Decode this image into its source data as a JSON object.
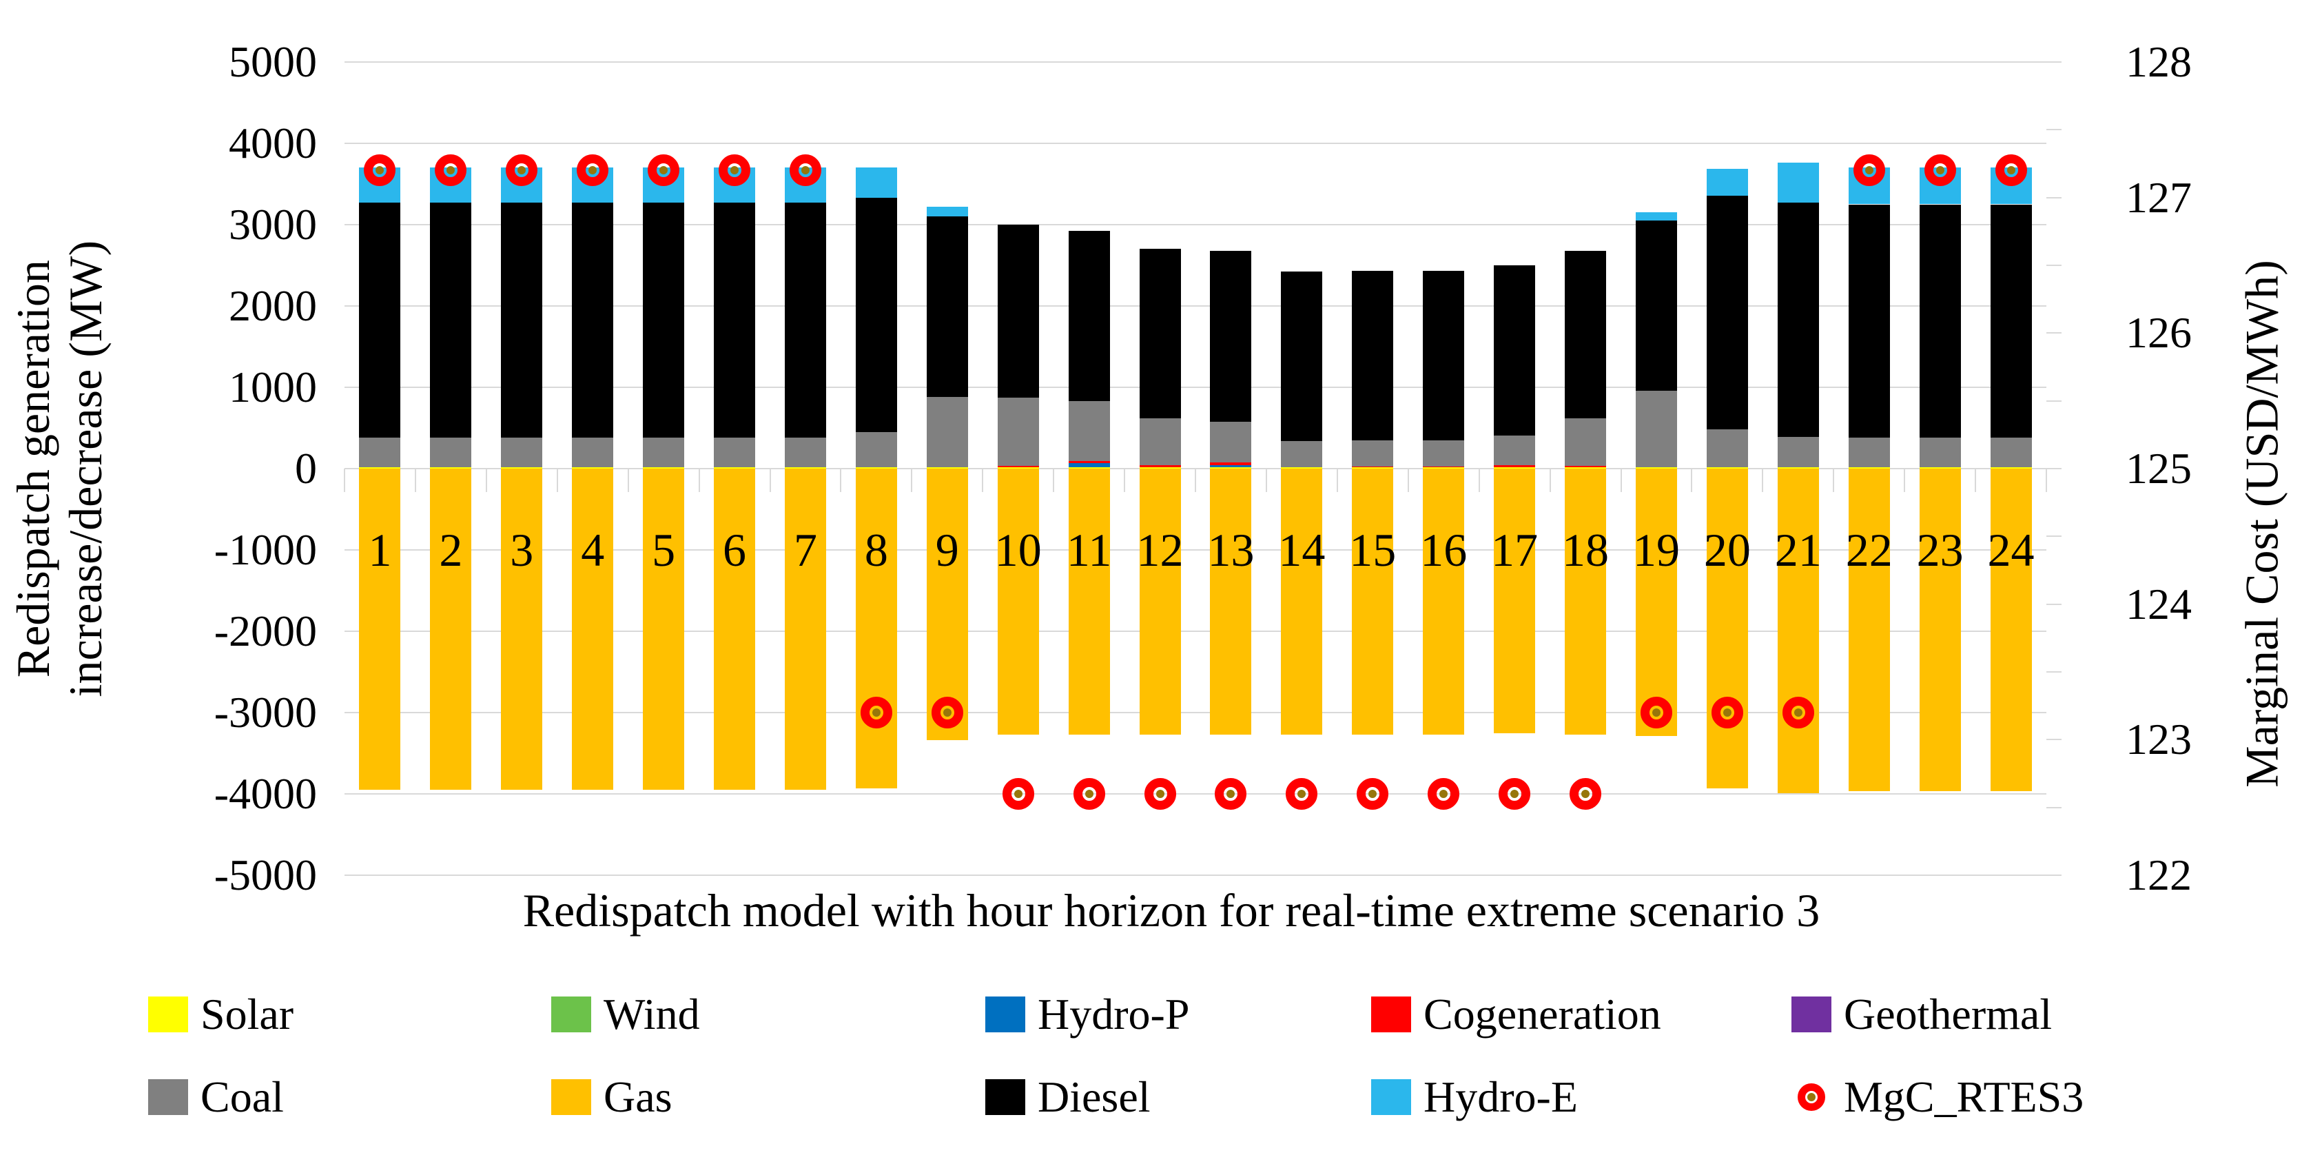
{
  "figure": {
    "x_axis_title": "Redispatch model with hour horizon for real-time extreme scenario 3",
    "left_axis": {
      "title_line1": "Redispatch generation",
      "title_line2": "increase/decrease (MW)",
      "tick_labels": [
        "5000",
        "4000",
        "3000",
        "2000",
        "1000",
        "0",
        "-1000",
        "-2000",
        "-3000",
        "-4000",
        "-5000"
      ]
    },
    "right_axis": {
      "title": "Marginal Cost (USD/MWh)",
      "tick_labels": [
        "128",
        "127",
        "126",
        "125",
        "124",
        "123",
        "122"
      ]
    },
    "legend": {
      "rows": [
        [
          {
            "label": "Solar",
            "type": "swatch",
            "color": "#FFFF00"
          },
          {
            "label": "Wind",
            "type": "swatch",
            "color": "#6CC24A"
          },
          {
            "label": "Hydro-P",
            "type": "swatch",
            "color": "#0070C0"
          },
          {
            "label": "Cogeneration",
            "type": "swatch",
            "color": "#FF0000"
          },
          {
            "label": "Geothermal",
            "type": "swatch",
            "color": "#7030A0"
          }
        ],
        [
          {
            "label": "Coal",
            "type": "swatch",
            "color": "#808080"
          },
          {
            "label": "Gas",
            "type": "swatch",
            "color": "#FFC000"
          },
          {
            "label": "Diesel",
            "type": "swatch",
            "color": "#000000"
          },
          {
            "label": "Hydro-E",
            "type": "swatch",
            "color": "#2BB7EC"
          },
          {
            "label": "MgC_RTES3",
            "type": "marker",
            "color": "#FF0000"
          }
        ]
      ]
    }
  },
  "chart_data": {
    "type": "bar",
    "subtype": "stacked-dual-axis",
    "title": "",
    "xlabel": "Redispatch model with hour horizon for real-time extreme scenario 3",
    "left_ylabel": "Redispatch generation increase/decrease (MW)",
    "right_ylabel": "Marginal Cost (USD/MWh)",
    "left_ylim": [
      -5000,
      5000
    ],
    "right_ylim": [
      122,
      128
    ],
    "grid": "horizontal",
    "legend_position": "bottom",
    "categories": [
      "1",
      "2",
      "3",
      "4",
      "5",
      "6",
      "7",
      "8",
      "9",
      "10",
      "11",
      "12",
      "13",
      "14",
      "15",
      "16",
      "17",
      "18",
      "19",
      "20",
      "21",
      "22",
      "23",
      "24"
    ],
    "series": [
      {
        "name": "Solar",
        "color": "#FFFF00",
        "values": [
          20,
          20,
          20,
          20,
          20,
          20,
          20,
          20,
          20,
          20,
          20,
          20,
          20,
          20,
          20,
          20,
          20,
          20,
          20,
          20,
          20,
          20,
          20,
          20
        ]
      },
      {
        "name": "Wind",
        "color": "#6CC24A",
        "values": [
          0,
          0,
          0,
          0,
          0,
          0,
          0,
          0,
          0,
          0,
          0,
          0,
          0,
          0,
          0,
          0,
          0,
          0,
          0,
          0,
          0,
          0,
          0,
          0
        ]
      },
      {
        "name": "Hydro-P",
        "color": "#0070C0",
        "values": [
          0,
          0,
          0,
          0,
          0,
          0,
          0,
          0,
          0,
          0,
          45,
          0,
          20,
          0,
          0,
          0,
          0,
          0,
          0,
          0,
          0,
          0,
          0,
          0
        ]
      },
      {
        "name": "Cogeneration",
        "color": "#FF0000",
        "values": [
          0,
          0,
          0,
          0,
          0,
          0,
          0,
          0,
          0,
          10,
          30,
          25,
          35,
          0,
          8,
          8,
          25,
          15,
          0,
          0,
          0,
          0,
          0,
          0
        ]
      },
      {
        "name": "Geothermal",
        "color": "#7030A0",
        "values": [
          0,
          0,
          0,
          0,
          0,
          0,
          0,
          0,
          0,
          0,
          0,
          0,
          0,
          0,
          0,
          0,
          0,
          0,
          0,
          0,
          0,
          0,
          0,
          0
        ]
      },
      {
        "name": "Coal",
        "color": "#808080",
        "values": [
          360,
          360,
          360,
          360,
          360,
          360,
          360,
          430,
          860,
          840,
          735,
          570,
          505,
          320,
          320,
          320,
          365,
          580,
          940,
          460,
          370,
          360,
          360,
          360
        ]
      },
      {
        "name": "Gas",
        "color": "#FFC000",
        "values": [
          -3950,
          -3950,
          -3950,
          -3950,
          -3950,
          -3950,
          -3950,
          -3930,
          -3340,
          -3270,
          -3270,
          -3270,
          -3270,
          -3270,
          -3270,
          -3270,
          -3250,
          -3270,
          -3290,
          -3930,
          -3990,
          -3970,
          -3970,
          -3970
        ]
      },
      {
        "name": "Diesel",
        "color": "#000000",
        "values": [
          2890,
          2890,
          2890,
          2890,
          2890,
          2890,
          2890,
          2880,
          2225,
          2130,
          2090,
          2085,
          2095,
          2085,
          2085,
          2085,
          2090,
          2060,
          2090,
          2880,
          2880,
          2870,
          2870,
          2870
        ]
      },
      {
        "name": "Hydro-E",
        "color": "#2BB7EC",
        "values": [
          430,
          430,
          430,
          430,
          430,
          430,
          430,
          370,
          115,
          0,
          0,
          0,
          0,
          0,
          0,
          0,
          0,
          0,
          100,
          330,
          490,
          450,
          450,
          450
        ]
      }
    ],
    "marker_series": {
      "name": "MgC_RTES3",
      "axis": "right",
      "ring_color": "#FF0000",
      "center_color": "#97760B",
      "values": [
        127.2,
        127.2,
        127.2,
        127.2,
        127.2,
        127.2,
        127.2,
        123.2,
        123.2,
        122.6,
        122.6,
        122.6,
        122.6,
        122.6,
        122.6,
        122.6,
        122.6,
        122.6,
        123.2,
        123.2,
        123.2,
        127.2,
        127.2,
        127.2
      ]
    }
  },
  "colors": {
    "gridline": "#D9D9D9",
    "background": "#FFFFFF",
    "text": "#000000"
  }
}
